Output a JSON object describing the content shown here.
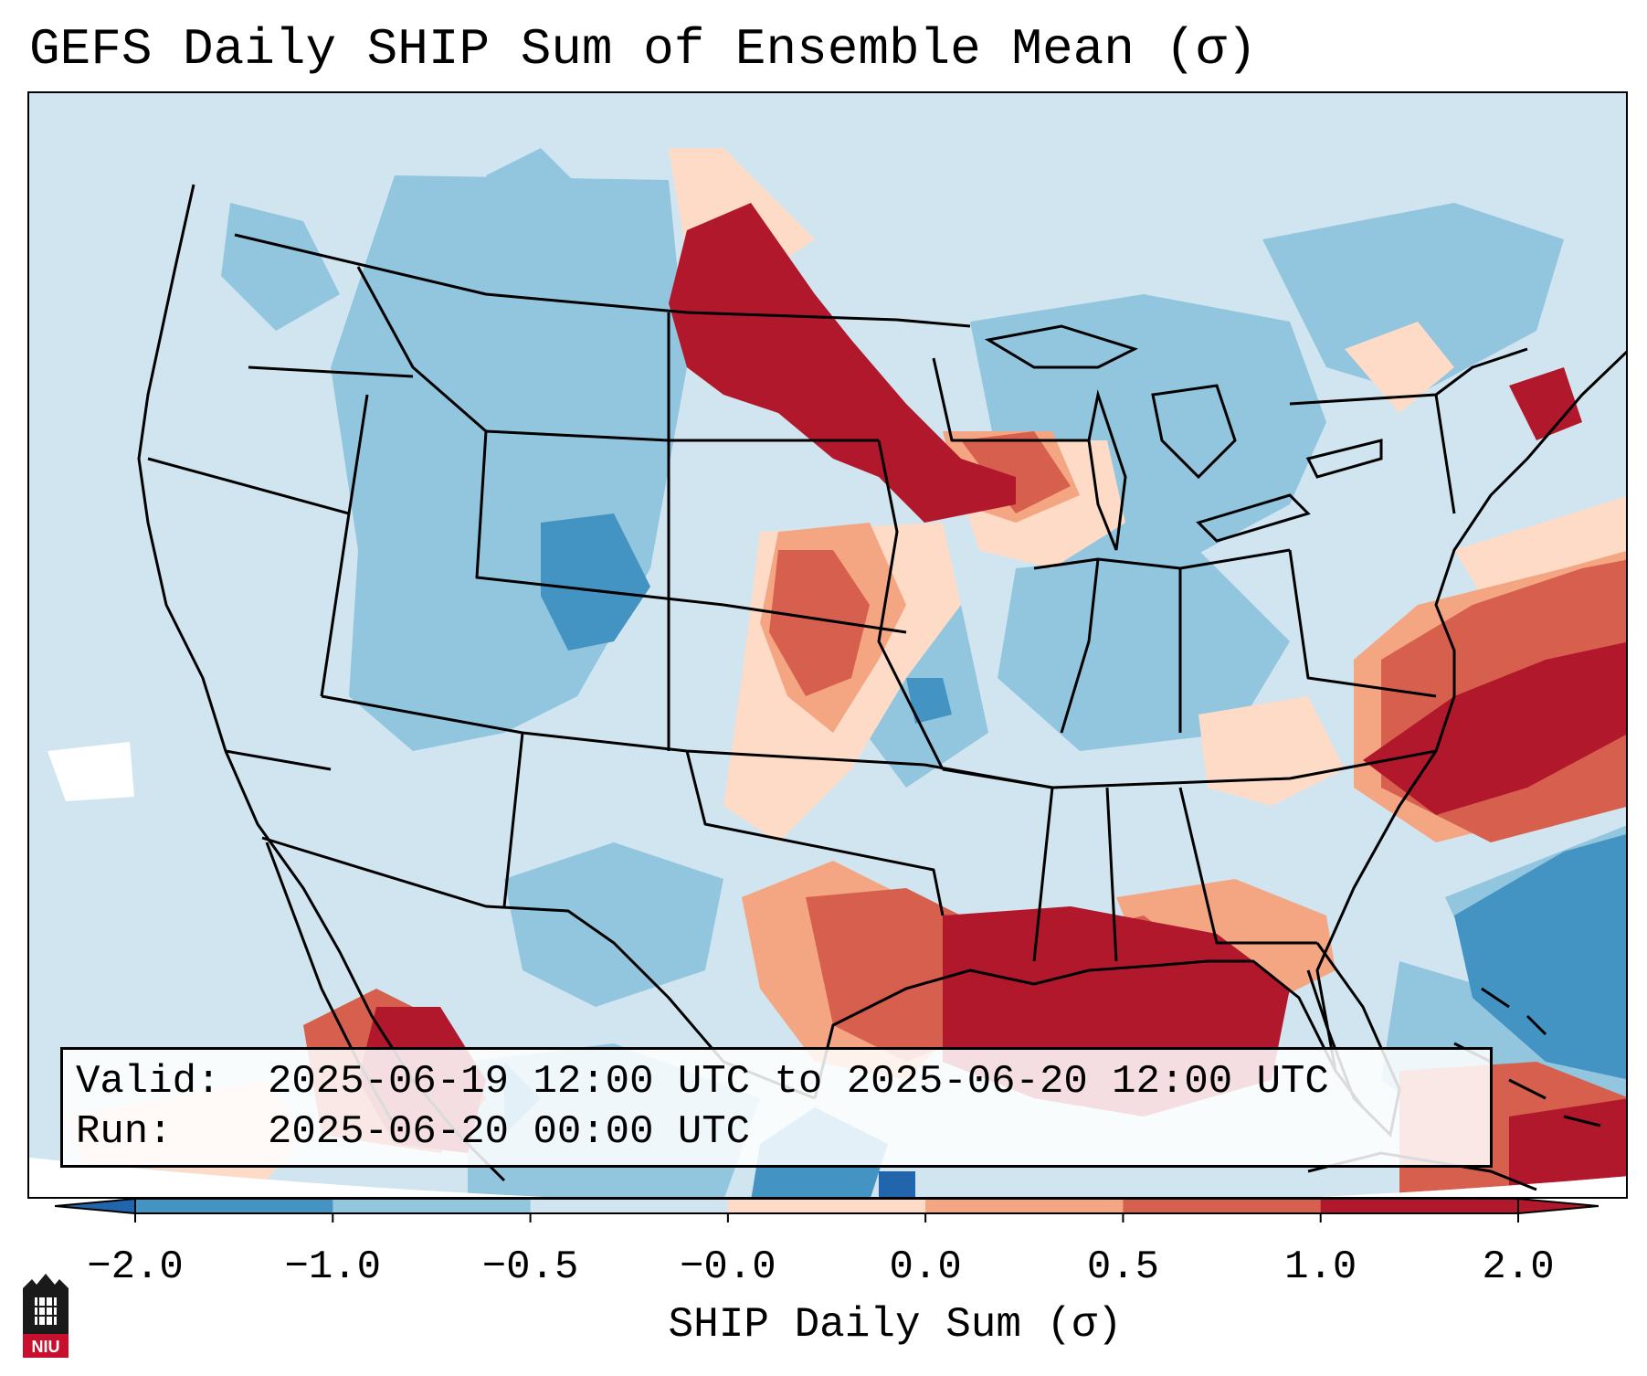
{
  "title": "GEFS Daily SHIP Sum of Ensemble Mean (σ)",
  "info": {
    "valid_label": "Valid:",
    "valid_value": "2025-06-19 12:00 UTC to 2025-06-20 12:00 UTC",
    "run_label": "Run:",
    "run_value": "2025-06-20 00:00 UTC"
  },
  "colorbar": {
    "label": "SHIP Daily Sum (σ)",
    "tick_labels": [
      "−2.0",
      "−1.0",
      "−0.5",
      "−0.0",
      "0.0",
      "0.5",
      "1.0",
      "2.0"
    ],
    "bin_colors": [
      "#4393c3",
      "#92c5de",
      "#d1e5f0",
      "#fddbc7",
      "#f4a582",
      "#d6604d",
      "#b2182b"
    ],
    "extend_min_color": "#2166ac",
    "extend_max_color": "#b2182b"
  },
  "map": {
    "background_color": "#d1e5f0",
    "field_regions": [
      {
        "name": "northern-plains-high",
        "level": 1.6
      },
      {
        "name": "central-plains",
        "level": 0.9
      },
      {
        "name": "gulf-coast-high",
        "level": 1.6
      },
      {
        "name": "atlantic-offshore-high",
        "level": 1.4
      },
      {
        "name": "sargasso-low",
        "level": -1.4
      },
      {
        "name": "colorado-low",
        "level": -1.2
      },
      {
        "name": "western-mexico-high",
        "level": 1.5
      }
    ]
  },
  "logo": {
    "text": "NIU"
  }
}
